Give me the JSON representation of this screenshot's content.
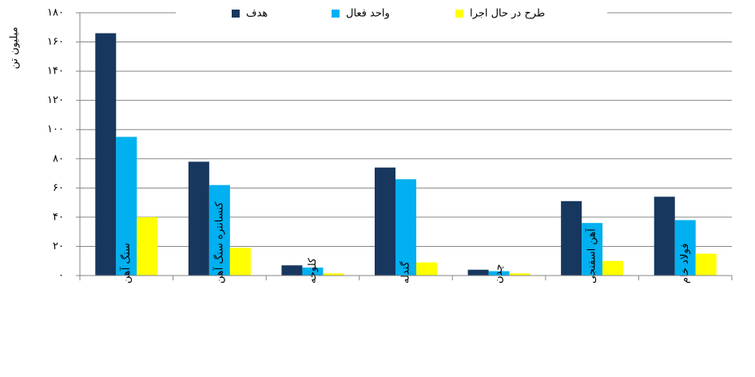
{
  "chart_data": {
    "type": "bar",
    "y_label": "میلیون تن",
    "categories": [
      "سنگ آهن",
      "کنسانتره سنگ آهن",
      "کلوخه",
      "گندله",
      "چدن",
      "آهن اسفنجی",
      "فولاد خام"
    ],
    "series": [
      {
        "name": "هدف",
        "color": "#17375e",
        "values": [
          166,
          78,
          7,
          74,
          4,
          51,
          54
        ]
      },
      {
        "name": "واحد فعال",
        "color": "#00b0f0",
        "values": [
          95,
          62,
          5.5,
          66,
          3,
          36,
          38
        ]
      },
      {
        "name": "طرح در حال اجرا",
        "color": "#ffff00",
        "values": [
          40,
          19,
          1.5,
          9,
          1.5,
          10,
          15
        ]
      }
    ],
    "ylim": [
      0,
      180
    ],
    "yticks": [
      {
        "value": 0,
        "label": "۰"
      },
      {
        "value": 20,
        "label": "۲۰"
      },
      {
        "value": 40,
        "label": "۴۰"
      },
      {
        "value": 60,
        "label": "۶۰"
      },
      {
        "value": 80,
        "label": "۸۰"
      },
      {
        "value": 100,
        "label": "۱۰۰"
      },
      {
        "value": 120,
        "label": "۱۲۰"
      },
      {
        "value": 140,
        "label": "۱۴۰"
      },
      {
        "value": 160,
        "label": "۱۶۰"
      },
      {
        "value": 180,
        "label": "۱۸۰"
      }
    ],
    "grid": true
  }
}
